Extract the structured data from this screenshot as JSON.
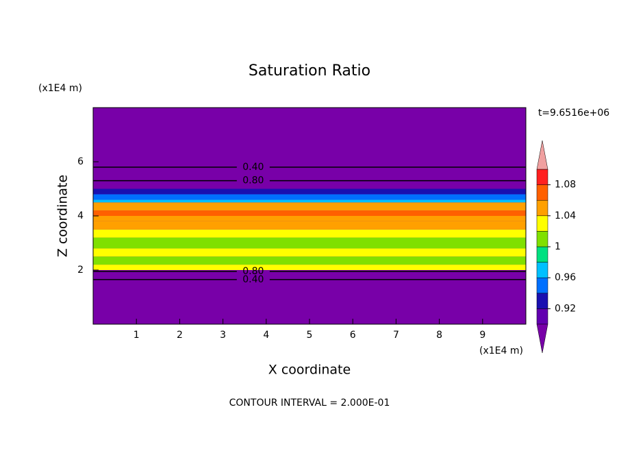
{
  "chart_data": {
    "type": "contour",
    "title": "Saturation Ratio",
    "xlabel": "X coordinate",
    "ylabel": "Z coordinate",
    "x_unit": "(x1E4 m)",
    "y_unit": "(x1E4 m)",
    "time_label": "t=9.6516e+06",
    "footer": "CONTOUR INTERVAL = 2.000E-01",
    "xlim": [
      0,
      10
    ],
    "ylim": [
      0,
      8
    ],
    "xticks": [
      1,
      2,
      3,
      4,
      5,
      6,
      7,
      8,
      9
    ],
    "yticks": [
      2,
      4,
      6
    ],
    "profile": {
      "z_edges": [
        0,
        2,
        2.2,
        2.5,
        2.8,
        3.2,
        3.5,
        3.8,
        4.0,
        4.2,
        4.5,
        4.6,
        4.8,
        5.0,
        8
      ],
      "values": [
        0.5,
        1.03,
        1.01,
        1.03,
        1.01,
        1.03,
        1.05,
        1.04,
        1.07,
        1.05,
        0.97,
        0.95,
        0.93,
        0.5
      ]
    },
    "contours": {
      "values": [
        0.4,
        0.8,
        0.8,
        0.4
      ],
      "value_labels": [
        "0.40",
        "0.80",
        "0.80",
        "0.40"
      ],
      "x": [
        3.7,
        3.7,
        3.7,
        3.7
      ],
      "z": [
        5.8,
        5.3,
        1.95,
        1.65
      ]
    },
    "colorbar": {
      "levels": [
        0.9,
        0.92,
        0.94,
        0.96,
        0.98,
        1.0,
        1.02,
        1.04,
        1.06,
        1.08,
        1.1
      ],
      "colors": [
        "#6200b0",
        "#1a10b0",
        "#0070ff",
        "#00c0ff",
        "#00e080",
        "#80e000",
        "#ffff00",
        "#ffa000",
        "#ff6000",
        "#ff2020"
      ],
      "under_color": "#7800a8",
      "over_color": "#f0a0a0",
      "ticks": [
        0.92,
        0.96,
        1,
        1.04,
        1.08
      ]
    }
  }
}
